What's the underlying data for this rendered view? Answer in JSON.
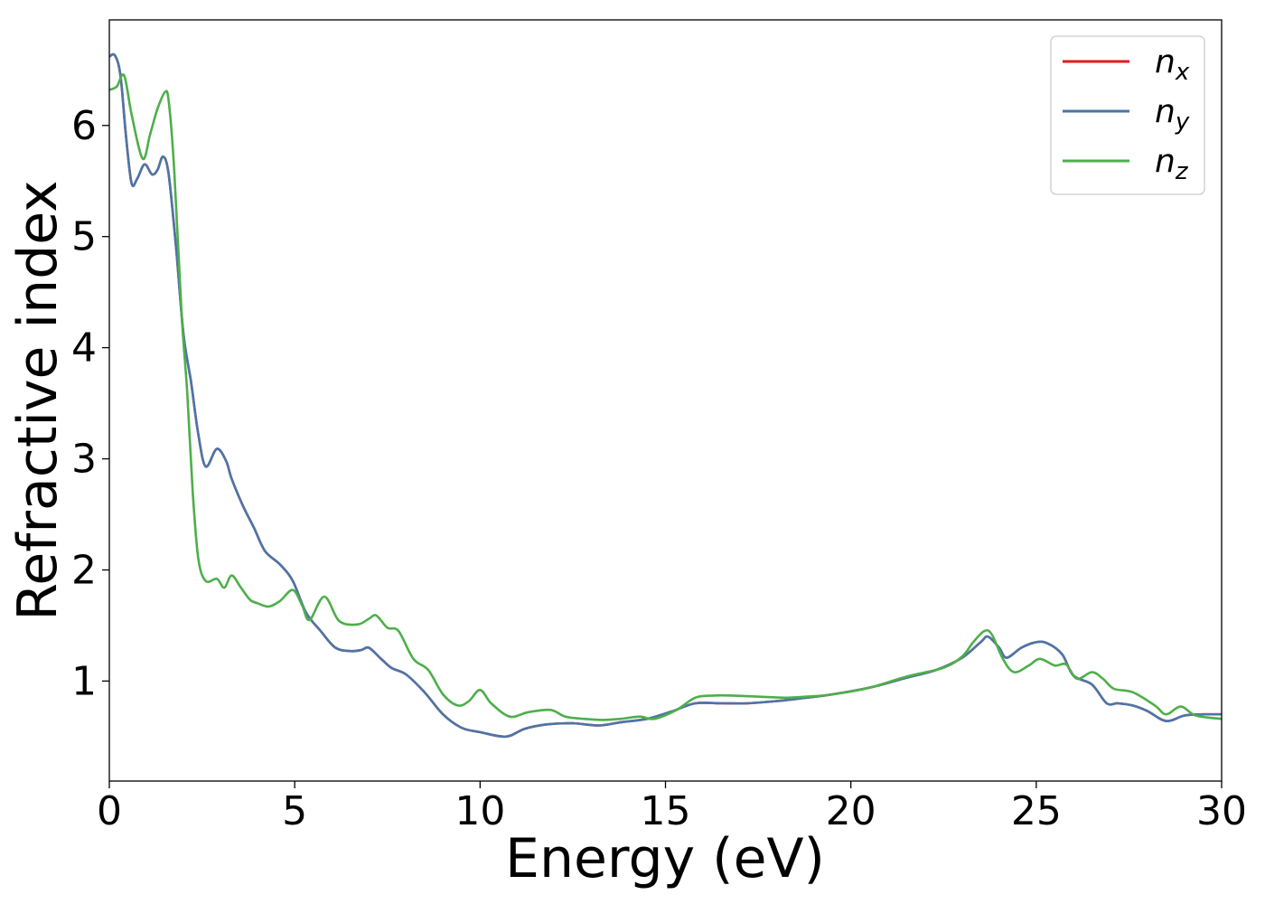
{
  "chart_data": {
    "type": "line",
    "xlabel": "Energy (eV)",
    "ylabel": "Refractive index",
    "xlim": [
      0,
      30
    ],
    "ylim": [
      0.1,
      6.95
    ],
    "xticks": [
      0,
      5,
      10,
      15,
      20,
      25,
      30
    ],
    "yticks": [
      1,
      2,
      3,
      4,
      5,
      6
    ],
    "grid": false,
    "legend_position": "top-right",
    "series": [
      {
        "name": "n",
        "subscript": "x",
        "color": "#e41a1c",
        "x": [
          0,
          0.15,
          0.3,
          0.45,
          0.6,
          0.75,
          0.95,
          1.15,
          1.3,
          1.45,
          1.6,
          1.8,
          2.0,
          2.2,
          2.4,
          2.6,
          2.9,
          3.15,
          3.3,
          3.6,
          3.9,
          4.2,
          4.6,
          4.95,
          5.3,
          5.7,
          6.1,
          6.5,
          6.8,
          7.0,
          7.3,
          7.6,
          8.0,
          8.5,
          9.0,
          9.5,
          10.0,
          10.7,
          11.2,
          11.8,
          12.5,
          13.2,
          13.8,
          14.5,
          15.2,
          15.8,
          16.5,
          17.2,
          18.0,
          18.8,
          19.5,
          20.5,
          21.5,
          22.3,
          23.0,
          23.5,
          23.7,
          24.0,
          24.2,
          24.6,
          25.0,
          25.3,
          25.7,
          26.0,
          26.5,
          26.9,
          27.2,
          27.6,
          28.0,
          28.5,
          29.0,
          29.5,
          30.0
        ],
        "values": [
          6.62,
          6.63,
          6.45,
          5.9,
          5.48,
          5.52,
          5.65,
          5.56,
          5.6,
          5.72,
          5.56,
          4.9,
          4.12,
          3.7,
          3.22,
          2.93,
          3.09,
          2.98,
          2.82,
          2.58,
          2.38,
          2.17,
          2.05,
          1.9,
          1.62,
          1.45,
          1.3,
          1.27,
          1.28,
          1.3,
          1.21,
          1.12,
          1.06,
          0.9,
          0.7,
          0.58,
          0.54,
          0.5,
          0.57,
          0.61,
          0.62,
          0.6,
          0.63,
          0.66,
          0.73,
          0.8,
          0.8,
          0.8,
          0.82,
          0.85,
          0.88,
          0.94,
          1.03,
          1.1,
          1.21,
          1.35,
          1.4,
          1.3,
          1.21,
          1.3,
          1.35,
          1.34,
          1.24,
          1.05,
          0.97,
          0.8,
          0.8,
          0.78,
          0.73,
          0.64,
          0.69,
          0.7,
          0.7
        ]
      },
      {
        "name": "n",
        "subscript": "y",
        "color": "#4a76a8",
        "x": [
          0,
          0.15,
          0.3,
          0.45,
          0.6,
          0.75,
          0.95,
          1.15,
          1.3,
          1.45,
          1.6,
          1.8,
          2.0,
          2.2,
          2.4,
          2.6,
          2.9,
          3.15,
          3.3,
          3.6,
          3.9,
          4.2,
          4.6,
          4.95,
          5.3,
          5.7,
          6.1,
          6.5,
          6.8,
          7.0,
          7.3,
          7.6,
          8.0,
          8.5,
          9.0,
          9.5,
          10.0,
          10.7,
          11.2,
          11.8,
          12.5,
          13.2,
          13.8,
          14.5,
          15.2,
          15.8,
          16.5,
          17.2,
          18.0,
          18.8,
          19.5,
          20.5,
          21.5,
          22.3,
          23.0,
          23.5,
          23.7,
          24.0,
          24.2,
          24.6,
          25.0,
          25.3,
          25.7,
          26.0,
          26.5,
          26.9,
          27.2,
          27.6,
          28.0,
          28.5,
          29.0,
          29.5,
          30.0
        ],
        "values": [
          6.62,
          6.63,
          6.45,
          5.9,
          5.48,
          5.52,
          5.65,
          5.56,
          5.6,
          5.72,
          5.56,
          4.9,
          4.12,
          3.7,
          3.22,
          2.93,
          3.09,
          2.98,
          2.82,
          2.58,
          2.38,
          2.17,
          2.05,
          1.9,
          1.62,
          1.45,
          1.3,
          1.27,
          1.28,
          1.3,
          1.21,
          1.12,
          1.06,
          0.9,
          0.7,
          0.58,
          0.54,
          0.5,
          0.57,
          0.61,
          0.62,
          0.6,
          0.63,
          0.66,
          0.73,
          0.8,
          0.8,
          0.8,
          0.82,
          0.85,
          0.88,
          0.94,
          1.03,
          1.1,
          1.21,
          1.35,
          1.4,
          1.3,
          1.21,
          1.3,
          1.35,
          1.34,
          1.24,
          1.05,
          0.97,
          0.8,
          0.8,
          0.78,
          0.73,
          0.64,
          0.69,
          0.7,
          0.7
        ]
      },
      {
        "name": "n",
        "subscript": "z",
        "color": "#4daf4a",
        "x": [
          0,
          0.2,
          0.4,
          0.6,
          0.9,
          1.1,
          1.3,
          1.5,
          1.6,
          1.75,
          1.95,
          2.1,
          2.25,
          2.4,
          2.6,
          2.9,
          3.1,
          3.3,
          3.55,
          3.8,
          4.0,
          4.3,
          4.6,
          4.95,
          5.2,
          5.4,
          5.8,
          6.2,
          6.7,
          7.0,
          7.2,
          7.5,
          7.8,
          8.2,
          8.6,
          9.0,
          9.4,
          9.7,
          10.0,
          10.3,
          10.8,
          11.3,
          11.9,
          12.3,
          12.8,
          13.3,
          13.8,
          14.3,
          14.7,
          15.3,
          15.8,
          16.3,
          16.8,
          17.5,
          18.2,
          18.8,
          19.5,
          20.5,
          21.5,
          22.5,
          23.0,
          23.3,
          23.6,
          23.8,
          24.1,
          24.4,
          24.8,
          25.1,
          25.5,
          25.8,
          26.1,
          26.5,
          26.8,
          27.1,
          27.6,
          28.2,
          28.5,
          28.9,
          29.3,
          30.0
        ],
        "values": [
          6.32,
          6.35,
          6.45,
          6.1,
          5.7,
          5.92,
          6.15,
          6.3,
          6.22,
          5.6,
          4.3,
          3.6,
          2.7,
          2.1,
          1.9,
          1.92,
          1.84,
          1.95,
          1.84,
          1.73,
          1.7,
          1.67,
          1.72,
          1.82,
          1.68,
          1.55,
          1.76,
          1.54,
          1.51,
          1.56,
          1.59,
          1.48,
          1.45,
          1.2,
          1.1,
          0.88,
          0.78,
          0.82,
          0.92,
          0.8,
          0.68,
          0.72,
          0.74,
          0.68,
          0.66,
          0.65,
          0.66,
          0.68,
          0.66,
          0.74,
          0.85,
          0.87,
          0.87,
          0.86,
          0.85,
          0.86,
          0.88,
          0.94,
          1.04,
          1.12,
          1.22,
          1.35,
          1.45,
          1.42,
          1.2,
          1.08,
          1.14,
          1.2,
          1.14,
          1.15,
          1.02,
          1.08,
          1.02,
          0.93,
          0.9,
          0.78,
          0.7,
          0.77,
          0.69,
          0.66
        ]
      }
    ]
  }
}
